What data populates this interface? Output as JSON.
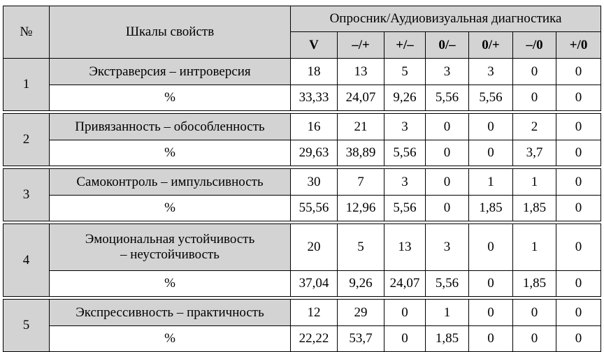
{
  "table": {
    "header": {
      "num": "№",
      "scales": "Шкалы свойств",
      "group": "Опросник/Аудиовизуальная диагностика",
      "cols": [
        "V",
        "–/+",
        "+/–",
        "0/–",
        "0/+",
        "–/0",
        "+/0"
      ]
    },
    "rows": [
      {
        "num": "1",
        "name": "Экстраверсия – интроверсия",
        "values": [
          "18",
          "13",
          "5",
          "3",
          "3",
          "0",
          "0"
        ],
        "pct_label": "%",
        "pct": [
          "33,33",
          "24,07",
          "9,26",
          "5,56",
          "5,56",
          "0",
          "0"
        ]
      },
      {
        "num": "2",
        "name": "Привязанность – обособленность",
        "values": [
          "16",
          "21",
          "3",
          "0",
          "0",
          "2",
          "0"
        ],
        "pct_label": "%",
        "pct": [
          "29,63",
          "38,89",
          "5,56",
          "0",
          "0",
          "3,7",
          "0"
        ]
      },
      {
        "num": "3",
        "name": "Самоконтроль – импульсивность",
        "values": [
          "30",
          "7",
          "3",
          "0",
          "1",
          "1",
          "0"
        ],
        "pct_label": "%",
        "pct": [
          "55,56",
          "12,96",
          "5,56",
          "0",
          "1,85",
          "1,85",
          "0"
        ]
      },
      {
        "num": "4",
        "name": "Эмоциональная устойчивость – неустойчивость",
        "values": [
          "20",
          "5",
          "13",
          "3",
          "0",
          "1",
          "0"
        ],
        "pct_label": "%",
        "pct": [
          "37,04",
          "9,26",
          "24,07",
          "5,56",
          "0",
          "1,85",
          "0"
        ]
      },
      {
        "num": "5",
        "name": "Экспрессивность –  практичность",
        "values": [
          "12",
          "29",
          "0",
          "1",
          "0",
          "0",
          "0"
        ],
        "pct_label": "%",
        "pct": [
          "22,22",
          "53,7",
          "0",
          "1,85",
          "0",
          "0",
          "0"
        ]
      }
    ]
  }
}
